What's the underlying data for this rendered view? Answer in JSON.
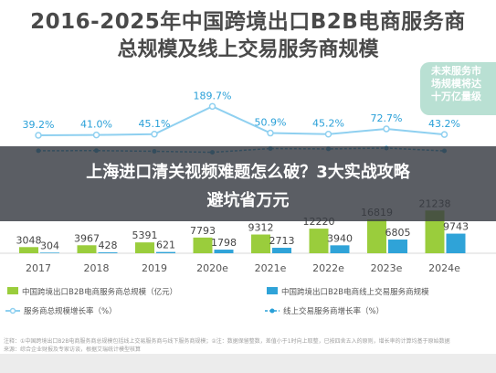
{
  "header": {
    "title_line1": "2016-2025年中国跨境出口B2B电商服务商",
    "title_line2": "总规模及线上交易服务商规模"
  },
  "bubble": {
    "line1": "未来服务市",
    "line2": "场规模将达",
    "line3": "十万亿量级"
  },
  "overlay": {
    "headline_line1": "上海进口清关视频难题怎么破？3大实战攻略",
    "headline_line2": "避坑省万元"
  },
  "footnote": {
    "line1": "注释：①中国跨境出口B2B电商服务商总规模包括线上交易服务商与线下服务商规模；②注：数据保留整数，差值小于1时向上取整，已按四舍五入的原则，增长率的计算均基于原始数据",
    "line2": "来源：综合企业财报及专家访谈，根据艾瑞统计模型核算"
  },
  "colors": {
    "bar_total": "#9acd3c",
    "bar_online": "#2fa3d8",
    "line_total_growth": "#8fd0f0",
    "line_online_growth": "#2aa0d8",
    "title": "#4a4a4a"
  },
  "chart_data": {
    "type": "bar",
    "categories": [
      "2017",
      "2018",
      "2019",
      "2020e",
      "2021e",
      "2022e",
      "2023e",
      "2024e"
    ],
    "series": [
      {
        "name": "中国跨境出口B2B电商服务商总规模（亿元）",
        "values": [
          3048,
          3967,
          5391,
          7793,
          9312,
          12220,
          16819,
          21238
        ],
        "labels": [
          "3048",
          "3967",
          "5391",
          "7793",
          "9312",
          "12220",
          "16819",
          "21238"
        ]
      },
      {
        "name": "中国跨境出口B2B电商线上交易服务商规模",
        "values": [
          304,
          428,
          621,
          1798,
          2713,
          3940,
          6805,
          9743
        ],
        "labels": [
          "304",
          "428",
          "621",
          "1798",
          "2713",
          "3940",
          "6805",
          "9743"
        ]
      },
      {
        "name": "服务商总规模增长率（%）",
        "values": [
          39.2,
          41.0,
          45.1,
          189.7,
          50.9,
          45.2,
          72.7,
          43.2
        ],
        "labels": [
          "39.2%",
          "41.0%",
          "45.1%",
          "189.7%",
          "50.9%",
          "45.2%",
          "72.7%",
          "43.2%"
        ]
      },
      {
        "name": "线上交易服务商增长率（%）",
        "values": [
          30.2,
          30.5,
          28.7,
          25.9,
          36.2,
          35.2,
          37.4,
          29.8
        ],
        "labels": []
      }
    ],
    "title": "2016-2025年中国跨境出口B2B电商服务商总规模及线上交易服务商规模",
    "xlabel": "",
    "ylabel": ""
  }
}
